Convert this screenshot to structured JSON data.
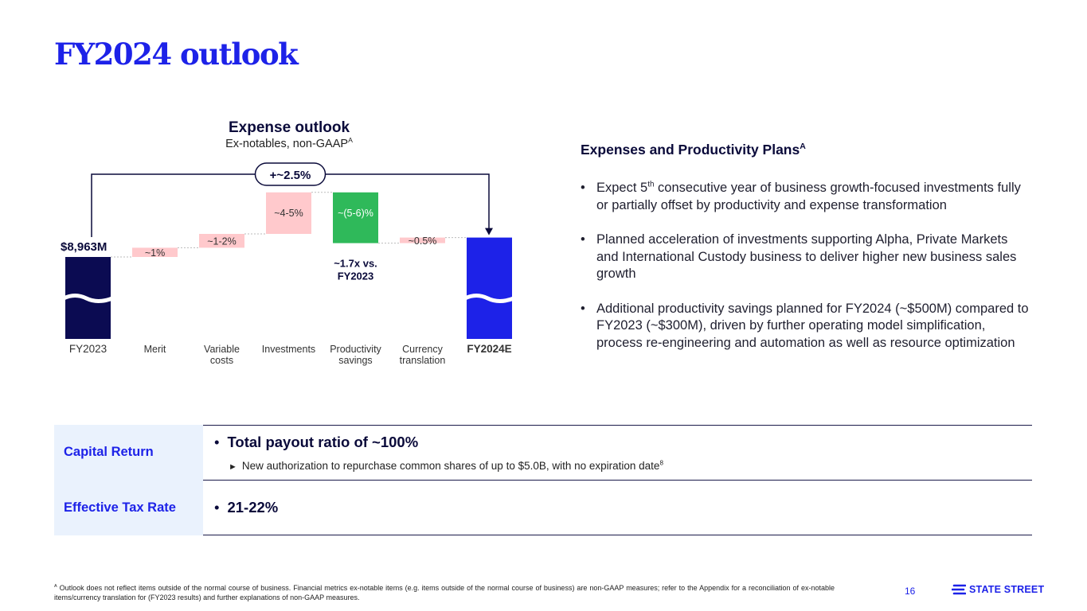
{
  "title": "FY2024 outlook",
  "chart_header": {
    "title": "Expense outlook",
    "subtitle": "Ex-notables, non-GAAP",
    "subtitle_sup": "A"
  },
  "chart_data": {
    "type": "bar",
    "title": "Expense outlook",
    "subtitle": "Ex-notables, non-GAAP",
    "categories": [
      "FY2023",
      "Merit",
      "Variable\ncosts",
      "Investments",
      "Productivity\nsavings",
      "Currency\ntranslation",
      "FY2024E"
    ],
    "value_labels": [
      "$8,963M",
      "~1%",
      "~1-2%",
      "~4-5%",
      "~(5-6)%",
      "~0.5%",
      ""
    ],
    "values_pct_estimate": [
      0,
      1,
      1.5,
      4.5,
      -5.5,
      0.5,
      2.5
    ],
    "bar_kinds": [
      "total",
      "increase",
      "increase",
      "increase",
      "decrease",
      "increase",
      "total"
    ],
    "bar_colors": [
      "#0b0b52",
      "#ffc9cc",
      "#ffc9cc",
      "#ffc9cc",
      "#2fb95a",
      "#ffc9cc",
      "#1d22e8"
    ],
    "total_change_label": "+~2.5%",
    "annotation": "~1.7x vs.\nFY2023",
    "axis_break": true
  },
  "right_panel": {
    "title": "Expenses and Productivity Plans",
    "title_sup": "A",
    "bullets": [
      {
        "pre": "Expect 5",
        "sup": "th",
        "post": " consecutive year of business growth-focused investments fully or partially offset by productivity and expense transformation"
      },
      {
        "text": "Planned acceleration of investments supporting Alpha, Private Markets and International Custody business to deliver higher new business sales growth"
      },
      {
        "text": "Additional productivity savings planned for FY2024 (~$500M) compared to FY2023 (~$300M), driven by further operating model simplification, process re-engineering and automation as well as resource optimization"
      }
    ]
  },
  "table": {
    "capital_return": {
      "label": "Capital Return",
      "main": "Total payout ratio of ~100%",
      "sub": "New authorization to repurchase common shares of up to $5.0B, with no expiration date",
      "sub_sup": "8"
    },
    "tax_rate": {
      "label": "Effective Tax Rate",
      "main": "21-22%"
    }
  },
  "footnote": {
    "sup": "A",
    "text": "Outlook does not reflect items outside of the normal course of business. Financial metrics ex-notable items (e.g. items outside of the normal course of business) are non-GAAP measures; refer to the Appendix for a reconciliation of ex-notable items/currency translation for (FY2023 results) and further explanations of non-GAAP measures."
  },
  "page_number": "16",
  "logo": {
    "text": "STATE STREET",
    "icon": "state-street-logo-icon",
    "color": "#1d22e8"
  }
}
